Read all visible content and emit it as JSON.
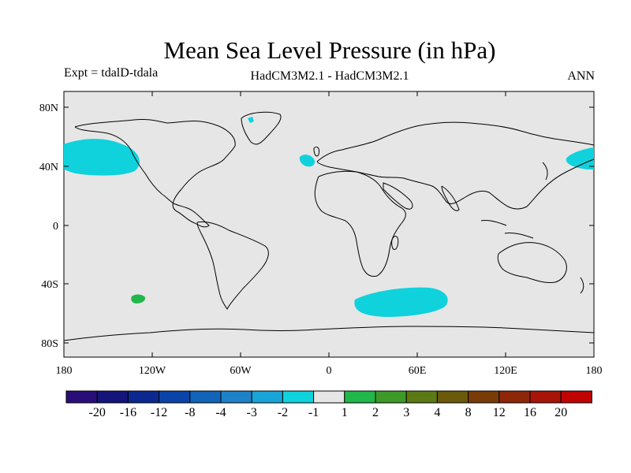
{
  "title": "Mean Sea Level Pressure (in hPa)",
  "subtitle_left": "Expt = tdalD-tdala",
  "subtitle_center": "HadCM3M2.1 - HadCM3M2.1",
  "subtitle_right": "ANN",
  "map": {
    "background_color": "#e6e6e6",
    "lat_ticks": [
      "80N",
      "40N",
      "0",
      "40S",
      "80S"
    ],
    "lon_ticks": [
      "180",
      "120W",
      "60W",
      "0",
      "60E",
      "120E",
      "180"
    ]
  },
  "colorbar": {
    "colors": [
      "#2a0e78",
      "#14147a",
      "#0c2890",
      "#0a44a8",
      "#1264b8",
      "#1e82c8",
      "#18a4d8",
      "#0fd2dc",
      "#e6e6e6",
      "#20b84a",
      "#3e9a28",
      "#5c7a14",
      "#6a5a0a",
      "#7a3c06",
      "#8e2608",
      "#a81408",
      "#c00404"
    ],
    "labels": [
      "-20",
      "-16",
      "-12",
      "-8",
      "-4",
      "-3",
      "-2",
      "-1",
      "1",
      "2",
      "3",
      "4",
      "8",
      "12",
      "16",
      "20"
    ]
  }
}
